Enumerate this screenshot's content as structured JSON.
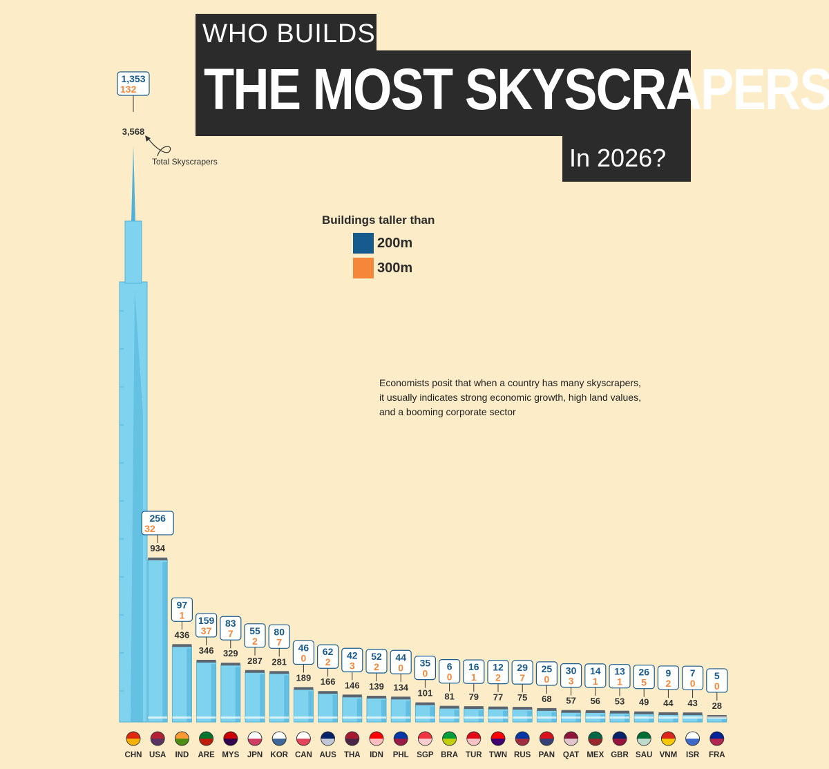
{
  "title": {
    "line1": "WHO BUILDS",
    "line2": "THE MOST SKYSCRAPERS",
    "line3": "In 2026?"
  },
  "legend": {
    "title": "Buildings taller than",
    "items": [
      {
        "label": "200m",
        "color": "#165a8e"
      },
      {
        "label": "300m",
        "color": "#f5873a"
      }
    ]
  },
  "annotation": {
    "total_label": "Total Skyscrapers"
  },
  "note_lines": [
    "Economists posit that when a country has many skyscrapers,",
    "it usually indicates strong economic growth, high land values,",
    "and a booming corporate sector"
  ],
  "colors": {
    "background": "#fcedc8",
    "building": "#7fd3ee",
    "building_dark": "#4fb3d9",
    "title_bg": "#2b2b2b",
    "over_200m": "#165a8e",
    "over_300m": "#f5873a"
  },
  "chart_data": {
    "type": "bar",
    "categories": [
      "CHN",
      "USA",
      "IND",
      "ARE",
      "MYS",
      "JPN",
      "KOR",
      "CAN",
      "AUS",
      "THA",
      "IDN",
      "PHL",
      "SGP",
      "BRA",
      "TUR",
      "TWN",
      "RUS",
      "PAN",
      "QAT",
      "MEX",
      "GBR",
      "SAU",
      "VNM",
      "ISR",
      "FRA"
    ],
    "series": [
      {
        "name": "Total Skyscrapers",
        "values": [
          3568,
          934,
          436,
          346,
          329,
          287,
          281,
          189,
          166,
          146,
          139,
          134,
          101,
          81,
          79,
          77,
          75,
          68,
          57,
          56,
          53,
          49,
          44,
          43,
          28
        ]
      },
      {
        "name": "200m",
        "values": [
          1353,
          256,
          97,
          159,
          83,
          55,
          80,
          46,
          62,
          42,
          52,
          44,
          35,
          6,
          16,
          12,
          29,
          25,
          30,
          14,
          13,
          26,
          9,
          7,
          5
        ]
      },
      {
        "name": "300m",
        "values": [
          132,
          32,
          1,
          37,
          7,
          2,
          7,
          0,
          2,
          3,
          2,
          0,
          0,
          0,
          1,
          2,
          7,
          0,
          3,
          1,
          1,
          5,
          2,
          0,
          0
        ]
      }
    ],
    "flags": [
      "china-flag-icon",
      "usa-flag-icon",
      "india-flag-icon",
      "uae-flag-icon",
      "malaysia-flag-icon",
      "japan-flag-icon",
      "south-korea-flag-icon",
      "canada-flag-icon",
      "australia-flag-icon",
      "thailand-flag-icon",
      "indonesia-flag-icon",
      "philippines-flag-icon",
      "singapore-flag-icon",
      "brazil-flag-icon",
      "turkey-flag-icon",
      "taiwan-flag-icon",
      "russia-flag-icon",
      "panama-flag-icon",
      "qatar-flag-icon",
      "mexico-flag-icon",
      "uk-flag-icon",
      "saudi-arabia-flag-icon",
      "vietnam-flag-icon",
      "israel-flag-icon",
      "france-flag-icon"
    ],
    "flag_colors": [
      [
        "#de2910",
        "#ffde00"
      ],
      [
        "#b22234",
        "#3c3b6e"
      ],
      [
        "#ff9933",
        "#138808"
      ],
      [
        "#00732f",
        "#ff0000"
      ],
      [
        "#cc0001",
        "#010066"
      ],
      [
        "#ffffff",
        "#bc002d"
      ],
      [
        "#ffffff",
        "#003478"
      ],
      [
        "#ffffff",
        "#d80621"
      ],
      [
        "#012169",
        "#ffffff"
      ],
      [
        "#a51931",
        "#2d2a4a"
      ],
      [
        "#ff0000",
        "#ffffff"
      ],
      [
        "#0038a8",
        "#ce1126"
      ],
      [
        "#ef3340",
        "#ffffff"
      ],
      [
        "#009c3b",
        "#ffdf00"
      ],
      [
        "#e30a17",
        "#ffffff"
      ],
      [
        "#fe0000",
        "#000095"
      ],
      [
        "#0039a6",
        "#d52b1e"
      ],
      [
        "#da121a",
        "#005293"
      ],
      [
        "#8a1538",
        "#ffffff"
      ],
      [
        "#006847",
        "#ce1126"
      ],
      [
        "#012169",
        "#c8102e"
      ],
      [
        "#006c35",
        "#ffffff"
      ],
      [
        "#da251d",
        "#ffff00"
      ],
      [
        "#ffffff",
        "#0038b8"
      ],
      [
        "#002395",
        "#ed2939"
      ]
    ],
    "ylim": [
      0,
      3568
    ]
  }
}
